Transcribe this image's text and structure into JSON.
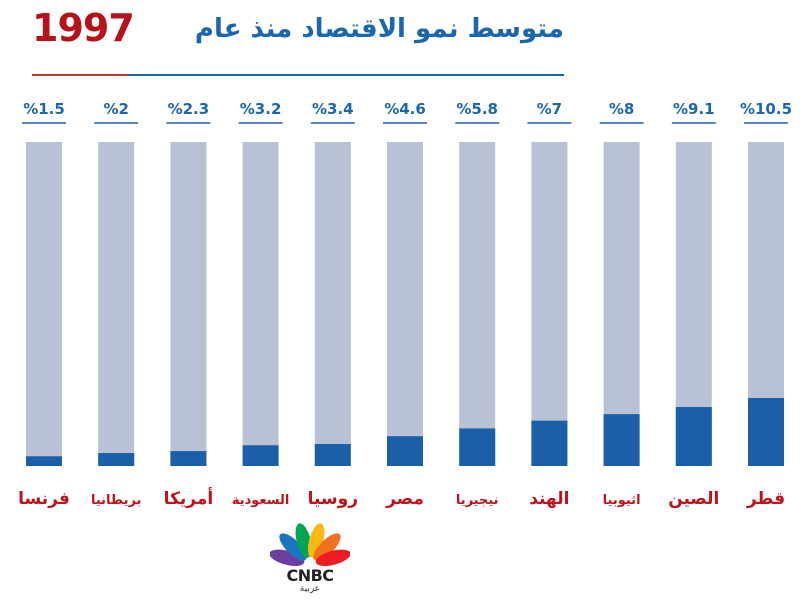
{
  "title": {
    "text": "متوسط نمو الاقتصاد منذ عام",
    "year": "1997"
  },
  "chart_data": {
    "type": "bar",
    "categories": [
      "فرنسا",
      "بريطانيا",
      "أمريكا",
      "السعودية",
      "روسيا",
      "مصر",
      "نيجيريا",
      "الهند",
      "اثيوبيا",
      "الصين",
      "قطر"
    ],
    "values": [
      1.5,
      2,
      2.3,
      3.2,
      3.4,
      4.6,
      5.8,
      7,
      8,
      9.1,
      10.5
    ],
    "value_labels": [
      "%1.5",
      "%2",
      "%2.3",
      "%3.2",
      "%3.4",
      "%4.6",
      "%5.8",
      "%7",
      "%8",
      "%9.1",
      "%10.5"
    ],
    "title": "متوسط نمو الاقتصاد منذ عام 1997",
    "ylim": [
      0,
      50
    ],
    "legend": "none",
    "grid": false
  },
  "colors": {
    "bar": "#1a5fa8",
    "track": "#b8c2d4",
    "value_label": "#1a67b0",
    "category_label": "#c0121b",
    "title_blue": "#1a67b0",
    "title_red": "#b5121b"
  },
  "logo": {
    "brand": "CNBC",
    "sub": "عربية"
  }
}
